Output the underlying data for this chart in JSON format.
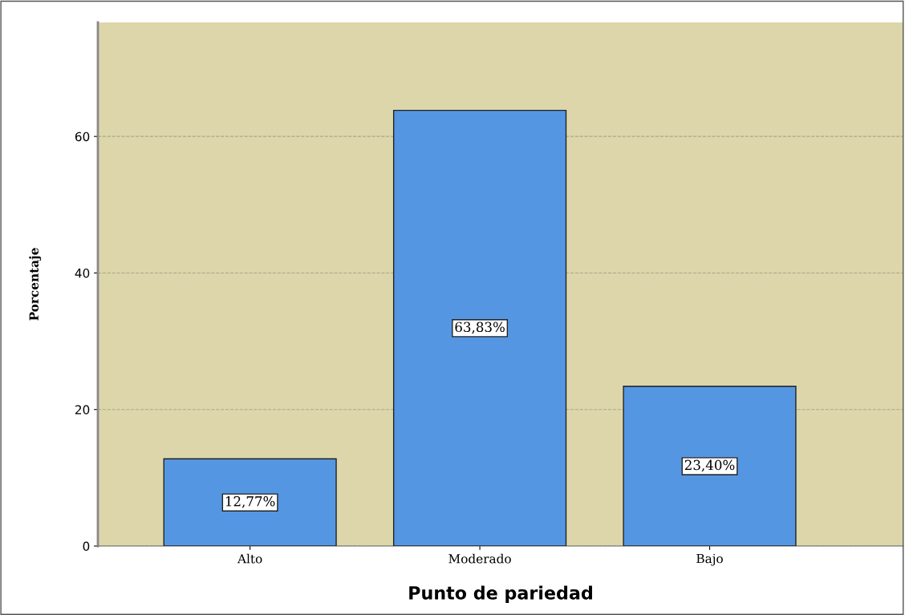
{
  "chart_data": {
    "type": "bar",
    "xlabel": "Punto de pariedad",
    "ylabel": "Porcentaje",
    "categories": [
      "Alto",
      "Moderado",
      "Bajo"
    ],
    "values": [
      12.77,
      63.83,
      23.4
    ],
    "value_labels": [
      "12,77%",
      "63,83%",
      "23,40%"
    ],
    "color": "#5596e3",
    "ylim": [
      0,
      76.7
    ],
    "yticks": [
      0,
      20,
      40,
      60
    ],
    "grid": "y"
  }
}
